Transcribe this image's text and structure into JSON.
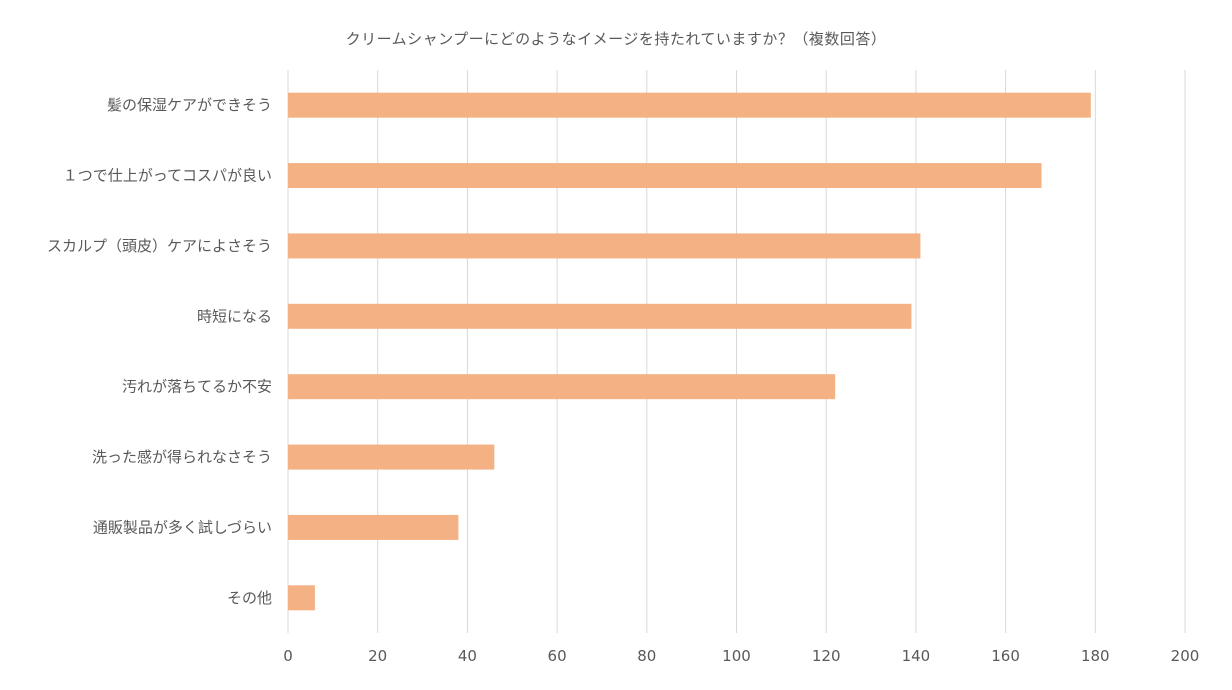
{
  "chart_data": {
    "type": "bar",
    "orientation": "horizontal",
    "title": "クリームシャンプーにどのようなイメージを持たれていますか？（複数回答）",
    "xlabel": "",
    "ylabel": "",
    "categories": [
      "髪の保湿ケアができそう",
      "１つで仕上がってコスパが良い",
      "スカルプ（頭皮）ケアによさそう",
      "時短になる",
      "汚れが落ちてるか不安",
      "洗った感が得られなさそう",
      "通販製品が多く試しづらい",
      "その他"
    ],
    "values": [
      179,
      168,
      141,
      139,
      122,
      46,
      38,
      6
    ],
    "xlim": [
      0,
      200
    ],
    "x_ticks": [
      "0",
      "20",
      "40",
      "60",
      "80",
      "100",
      "120",
      "140",
      "160",
      "180",
      "200"
    ],
    "grid": "vertical",
    "legend": "none",
    "bar_color": "#F4B183",
    "grid_color": "#D9D9D9",
    "text_color": "#595959"
  }
}
